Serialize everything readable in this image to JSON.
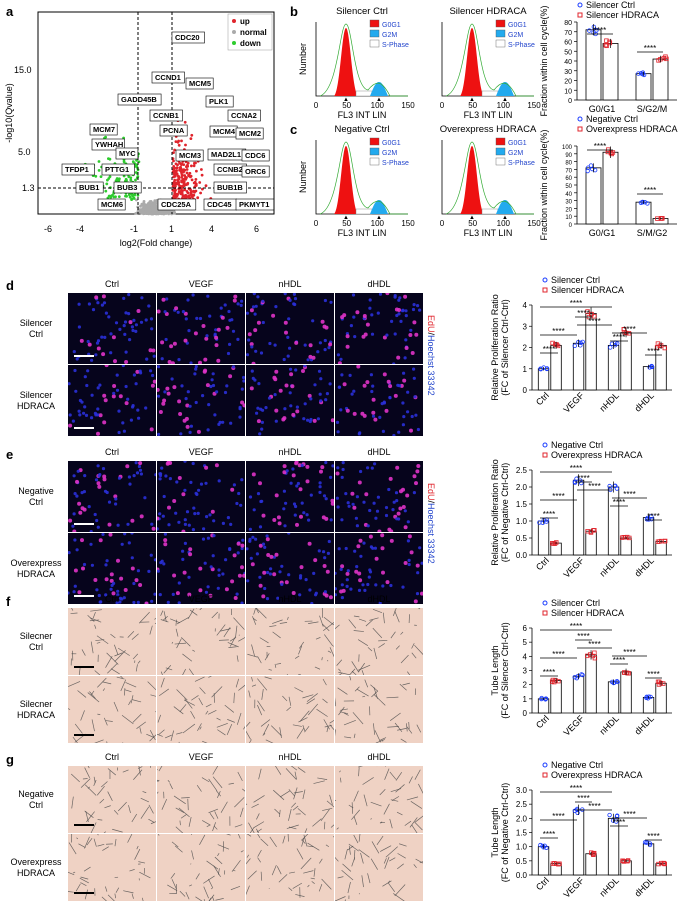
{
  "panels": {
    "a": {
      "label": "a",
      "xlabel": "log2(Fold change)",
      "ylabel": "-log10(Qvalue)",
      "legend": [
        "up",
        "normal",
        "down"
      ],
      "xticks": [
        "-6",
        "-4",
        "-1",
        "1",
        "4",
        "6"
      ],
      "yticks": [
        "15.0",
        "5.0",
        "1.3"
      ],
      "genes": [
        "CDC20",
        "CCND1",
        "MCM5",
        "GADD45B",
        "PLK1",
        "CCNB1",
        "CCNA2",
        "MCM7",
        "PCNA",
        "MCM4",
        "MCM2",
        "YWHAH",
        "MYC",
        "MCM3",
        "MAD2L1",
        "CDC6",
        "TFDP1",
        "PTTG1",
        "CCNB2",
        "ORC6",
        "BUB1",
        "BUB3",
        "BUB1B",
        "MCM6",
        "CDC25A",
        "CDC45",
        "PKMYT1"
      ]
    },
    "b": {
      "label": "b",
      "titles": [
        "Silencer Ctrl",
        "Silencer HDRACA"
      ],
      "legend_top": [
        "Silencer Ctrl",
        "Silencer HDRACA"
      ],
      "ylabel": "Fraction within cell cycle(%)",
      "categories": [
        "G0/G1",
        "S/G2/M"
      ],
      "sig": [
        "****",
        "****"
      ],
      "yticks": [
        "0",
        "10",
        "20",
        "30",
        "40",
        "50",
        "60",
        "70",
        "80"
      ]
    },
    "c": {
      "label": "c",
      "titles": [
        "Negative Ctrl",
        "Overexpress HDRACA"
      ],
      "legend_top": [
        "Negative Ctrl",
        "Overexpress HDRACA"
      ],
      "ylabel": "Fraction within cell cycle(%)",
      "categories": [
        "G0/G1",
        "S/M/G2"
      ],
      "sig": [
        "****",
        "****"
      ],
      "yticks": [
        "0",
        "10",
        "20",
        "30",
        "40",
        "50",
        "60",
        "70",
        "80",
        "90",
        "100"
      ]
    },
    "flow_common": {
      "xlabel": "FL3 INT LIN",
      "ylabel": "Number",
      "legend": [
        "G0G1",
        "G2M",
        "S-Phase"
      ],
      "xticks": [
        "0",
        "50",
        "100",
        "150"
      ]
    },
    "d": {
      "label": "d",
      "cols": [
        "Ctrl",
        "VEGF",
        "nHDL",
        "dHDL"
      ],
      "rows": [
        "Silencer\nCtrl",
        "Silencer\nHDRACA"
      ],
      "stain_edu": "EdU",
      "stain_sep": "/",
      "stain_hoechst": "Hoechst 33342",
      "legend": [
        "Silencer Ctrl",
        "Silencer HDRACA"
      ],
      "ylabel1": "Relative Proliferation Ratio",
      "ylabel2": "(FC of Silencer Ctrl-Ctrl)",
      "yticks": [
        "0",
        "1",
        "2",
        "3",
        "4"
      ],
      "categories": [
        "Ctrl",
        "VEGF",
        "nHDL",
        "dHDL"
      ]
    },
    "e": {
      "label": "e",
      "cols": [
        "Ctrl",
        "VEGF",
        "nHDL",
        "dHDL"
      ],
      "rows": [
        "Negative\nCtrl",
        "Overexpress\nHDRACA"
      ],
      "stain_edu": "EdU",
      "stain_sep": "/",
      "stain_hoechst": "Hoechst 33342",
      "legend": [
        "Negative Ctrl",
        "Overexpress HDRACA"
      ],
      "ylabel1": "Relative Proliferation Ratio",
      "ylabel2": "(FC of Negative Ctrl-Ctrl)",
      "yticks": [
        "0.0",
        "0.5",
        "1.0",
        "1.5",
        "2.0",
        "2.5"
      ],
      "categories": [
        "Ctrl",
        "VEGF",
        "nHDL",
        "dHDL"
      ]
    },
    "f": {
      "label": "f",
      "cols": [
        "Ctrl",
        "VEGF",
        "nHDL",
        "dHDL"
      ],
      "rows": [
        "Silecner\nCtrl",
        "Silecner\nHDRACA"
      ],
      "legend": [
        "Silencer Ctrl",
        "Silencer HDRACA"
      ],
      "ylabel1": "Tube Length",
      "ylabel2": "(FC of Silencer Ctrl-Ctrl)",
      "yticks": [
        "0",
        "1",
        "2",
        "3",
        "4",
        "5",
        "6"
      ],
      "categories": [
        "Ctrl",
        "VEGF",
        "nHDL",
        "dHDL"
      ]
    },
    "g": {
      "label": "g",
      "cols": [
        "Ctrl",
        "VEGF",
        "nHDL",
        "dHDL"
      ],
      "rows": [
        "Negative\nCtrl",
        "Overexpress\nHDRACA"
      ],
      "legend": [
        "Negative Ctrl",
        "Overexpress HDRACA"
      ],
      "ylabel1": "Tube Length",
      "ylabel2": "(FC of Negative Ctrl-Ctrl)",
      "yticks": [
        "0.0",
        "0.5",
        "1.0",
        "1.5",
        "2.0",
        "2.5",
        "3.0"
      ],
      "categories": [
        "Ctrl",
        "VEGF",
        "nHDL",
        "dHDL"
      ]
    }
  },
  "colors": {
    "ctrl": "#1a3cff",
    "treat": "#e0242c",
    "down": "#2ecc2e",
    "normal": "#aaaaaa",
    "g0g1": "#ee1111",
    "g2m": "#22aaee"
  },
  "chart_data": [
    {
      "type": "scatter",
      "panel": "a",
      "xlabel": "log2(Fold change)",
      "ylabel": "-log10(Qvalue)",
      "xlim": [
        -7,
        7
      ],
      "ylim": [
        0,
        20
      ],
      "series": [
        {
          "name": "up",
          "description": "upregulated"
        },
        {
          "name": "normal"
        },
        {
          "name": "down"
        }
      ]
    },
    {
      "type": "bar",
      "panel": "b",
      "categories": [
        "G0/G1",
        "S/G2/M"
      ],
      "series": [
        {
          "name": "Silencer Ctrl",
          "values": [
            72,
            27
          ]
        },
        {
          "name": "Silencer HDRACA",
          "values": [
            58,
            42
          ]
        }
      ],
      "ylabel": "Fraction within cell cycle(%)",
      "ylim": [
        0,
        80
      ]
    },
    {
      "type": "bar",
      "panel": "c",
      "categories": [
        "G0/G1",
        "S/M/G2"
      ],
      "series": [
        {
          "name": "Negative Ctrl",
          "values": [
            72,
            28
          ]
        },
        {
          "name": "Overexpress HDRACA",
          "values": [
            92,
            7
          ]
        }
      ],
      "ylabel": "Fraction within cell cycle(%)",
      "ylim": [
        0,
        100
      ]
    },
    {
      "type": "bar",
      "panel": "d",
      "categories": [
        "Ctrl",
        "VEGF",
        "nHDL",
        "dHDL"
      ],
      "series": [
        {
          "name": "Silencer Ctrl",
          "values": [
            1.0,
            2.2,
            2.1,
            1.1
          ]
        },
        {
          "name": "Silencer HDRACA",
          "values": [
            2.1,
            3.6,
            2.7,
            2.1
          ]
        }
      ],
      "ylim": [
        0,
        4
      ]
    },
    {
      "type": "bar",
      "panel": "e",
      "categories": [
        "Ctrl",
        "VEGF",
        "nHDL",
        "dHDL"
      ],
      "series": [
        {
          "name": "Negative Ctrl",
          "values": [
            1.0,
            2.2,
            2.0,
            1.1
          ]
        },
        {
          "name": "Overexpress HDRACA",
          "values": [
            0.35,
            0.7,
            0.5,
            0.4
          ]
        }
      ],
      "ylim": [
        0,
        2.5
      ]
    },
    {
      "type": "bar",
      "panel": "f",
      "categories": [
        "Ctrl",
        "VEGF",
        "nHDL",
        "dHDL"
      ],
      "series": [
        {
          "name": "Silencer Ctrl",
          "values": [
            1.0,
            2.6,
            2.2,
            1.1
          ]
        },
        {
          "name": "Silencer HDRACA",
          "values": [
            2.3,
            4.1,
            2.9,
            2.1
          ]
        }
      ],
      "ylim": [
        0,
        6
      ]
    },
    {
      "type": "bar",
      "panel": "g",
      "categories": [
        "Ctrl",
        "VEGF",
        "nHDL",
        "dHDL"
      ],
      "series": [
        {
          "name": "Negative Ctrl",
          "values": [
            1.0,
            2.3,
            2.0,
            1.1
          ]
        },
        {
          "name": "Overexpress HDRACA",
          "values": [
            0.4,
            0.75,
            0.5,
            0.4
          ]
        }
      ],
      "ylim": [
        0,
        3
      ]
    }
  ]
}
